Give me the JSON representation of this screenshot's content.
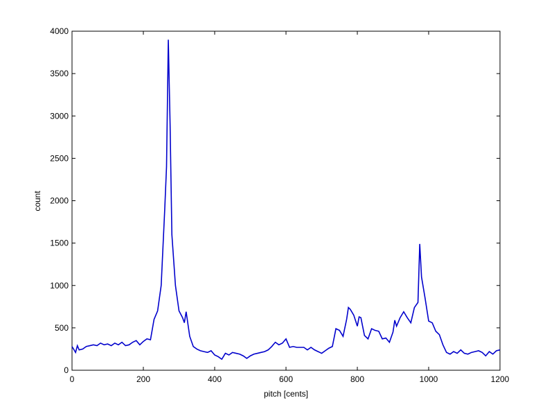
{
  "chart_data": {
    "type": "line",
    "xlabel": "pitch [cents]",
    "ylabel": "count",
    "x": [
      0,
      10,
      15,
      20,
      30,
      40,
      50,
      60,
      70,
      80,
      90,
      100,
      110,
      120,
      130,
      140,
      150,
      160,
      170,
      180,
      190,
      200,
      210,
      220,
      230,
      240,
      250,
      260,
      265,
      270,
      275,
      280,
      290,
      300,
      310,
      315,
      320,
      330,
      340,
      350,
      360,
      370,
      380,
      390,
      400,
      410,
      420,
      430,
      440,
      450,
      460,
      470,
      480,
      490,
      500,
      510,
      520,
      530,
      540,
      550,
      560,
      570,
      580,
      590,
      600,
      610,
      620,
      630,
      640,
      650,
      660,
      670,
      680,
      690,
      700,
      710,
      720,
      730,
      740,
      750,
      760,
      770,
      775,
      780,
      790,
      800,
      805,
      810,
      820,
      830,
      840,
      850,
      860,
      870,
      880,
      890,
      900,
      905,
      910,
      920,
      930,
      940,
      950,
      960,
      970,
      975,
      980,
      990,
      1000,
      1010,
      1020,
      1030,
      1040,
      1050,
      1060,
      1070,
      1080,
      1090,
      1100,
      1110,
      1120,
      1130,
      1140,
      1150,
      1160,
      1170,
      1180,
      1190,
      1200
    ],
    "series": [
      {
        "name": "count",
        "color": "#0000cc",
        "values": [
          280,
          210,
          290,
          240,
          250,
          280,
          290,
          300,
          290,
          320,
          300,
          310,
          290,
          320,
          300,
          330,
          290,
          300,
          330,
          350,
          300,
          340,
          370,
          360,
          600,
          700,
          1000,
          1900,
          2400,
          3900,
          2900,
          1600,
          1000,
          700,
          620,
          560,
          690,
          400,
          280,
          250,
          230,
          220,
          210,
          230,
          180,
          160,
          130,
          200,
          180,
          210,
          200,
          190,
          170,
          140,
          170,
          190,
          200,
          210,
          220,
          240,
          280,
          330,
          300,
          320,
          370,
          270,
          280,
          270,
          270,
          270,
          240,
          270,
          240,
          220,
          200,
          230,
          260,
          280,
          490,
          470,
          400,
          600,
          740,
          720,
          650,
          520,
          630,
          620,
          410,
          370,
          490,
          470,
          460,
          370,
          380,
          330,
          450,
          590,
          520,
          620,
          690,
          620,
          560,
          740,
          800,
          1490,
          1100,
          850,
          580,
          560,
          460,
          420,
          300,
          210,
          190,
          220,
          200,
          240,
          200,
          190,
          210,
          220,
          230,
          210,
          170,
          220,
          190,
          230,
          240
        ]
      }
    ],
    "xlim": [
      0,
      1200
    ],
    "xticks": [
      0,
      200,
      400,
      600,
      800,
      1000,
      1200
    ],
    "ylim": [
      0,
      4000
    ],
    "yticks": [
      0,
      500,
      1000,
      1500,
      2000,
      2500,
      3000,
      3500,
      4000
    ]
  }
}
